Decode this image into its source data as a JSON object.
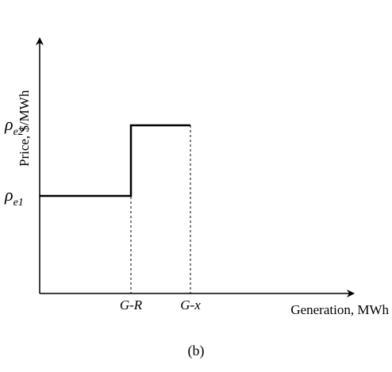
{
  "chart_data": {
    "type": "line",
    "step": true,
    "title": "",
    "xlabel": "Generation, MWh",
    "ylabel": "Price, $/MWh",
    "x_ticks": [
      {
        "key": "G-R",
        "label": "G-R"
      },
      {
        "key": "G-x",
        "label": "G-x"
      }
    ],
    "y_ticks": [
      {
        "key": "e1",
        "symbol": "ρ",
        "subscript": "e1",
        "label": "ρe1"
      },
      {
        "key": "e2",
        "symbol": "ρ",
        "subscript": "e2",
        "label": "ρe2"
      }
    ],
    "series": [
      {
        "points": [
          {
            "x": "0",
            "y": "e1"
          },
          {
            "x": "G-R",
            "y": "e1"
          },
          {
            "x": "G-R",
            "y": "e2"
          },
          {
            "x": "G-x",
            "y": "e2"
          }
        ]
      }
    ],
    "guides": [
      {
        "x": "G-R",
        "style": "dashed"
      },
      {
        "x": "G-x",
        "style": "dashed"
      }
    ],
    "grid": false
  },
  "caption": "(b)"
}
